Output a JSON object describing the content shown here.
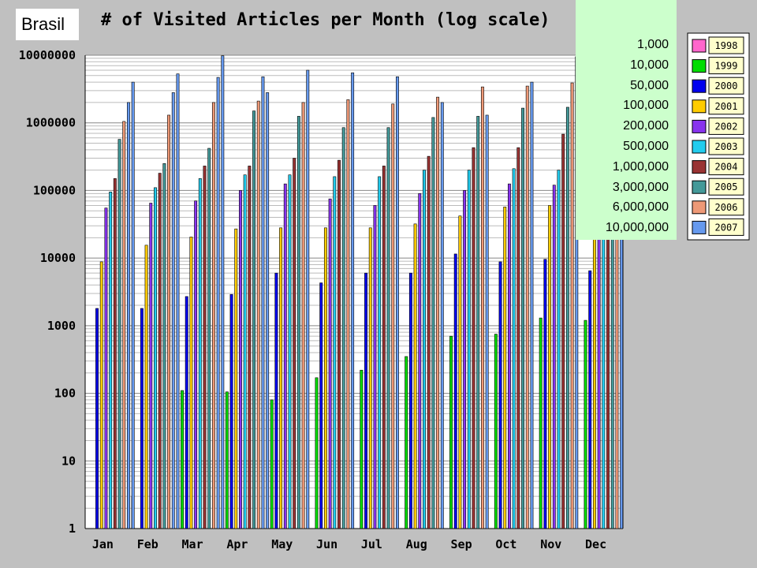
{
  "overlay_label": "Brasil",
  "scale_list": [
    "1,000",
    "10,000",
    "50,000",
    "100,000",
    "200,000",
    "500,000",
    "1,000,000",
    "3,000,000",
    "6,000,000",
    "10,000,000"
  ],
  "chart_data": {
    "type": "bar",
    "title": "# of Visited Articles per Month (log scale)",
    "yscale": "log",
    "ylim": [
      1,
      10000000
    ],
    "yticks": [
      "1",
      "10",
      "100",
      "1000",
      "10000",
      "100000",
      "1000000",
      "10000000"
    ],
    "categories": [
      "Jan",
      "Feb",
      "Mar",
      "Apr",
      "May",
      "Jun",
      "Jul",
      "Aug",
      "Sep",
      "Oct",
      "Nov",
      "Dec"
    ],
    "legend_position": "right",
    "grid": true,
    "series": [
      {
        "name": "1998",
        "color": "#ff66cc",
        "values": [
          null,
          3,
          null,
          null,
          null,
          null,
          null,
          null,
          null,
          null,
          null,
          null
        ]
      },
      {
        "name": "1999",
        "color": "#00dd00",
        "values": [
          null,
          null,
          110,
          105,
          80,
          170,
          220,
          350,
          700,
          750,
          1300,
          1200
        ]
      },
      {
        "name": "2000",
        "color": "#0000ee",
        "values": [
          1800,
          1800,
          2700,
          2900,
          6000,
          4300,
          6000,
          6000,
          11500,
          8800,
          9600,
          6500
        ]
      },
      {
        "name": "2001",
        "color": "#ffcc00",
        "values": [
          8800,
          15500,
          20500,
          27000,
          28000,
          28000,
          28000,
          32000,
          42000,
          57000,
          60000,
          32000
        ]
      },
      {
        "name": "2002",
        "color": "#8833ee",
        "values": [
          55000,
          65000,
          70000,
          100000,
          125000,
          75000,
          60000,
          90000,
          100000,
          125000,
          120000,
          90000
        ]
      },
      {
        "name": "2003",
        "color": "#22ccee",
        "values": [
          95000,
          110000,
          150000,
          170000,
          170000,
          160000,
          160000,
          200000,
          200000,
          210000,
          200000,
          200000
        ]
      },
      {
        "name": "2004",
        "color": "#993333",
        "values": [
          150000,
          180000,
          230000,
          230000,
          300000,
          280000,
          230000,
          320000,
          430000,
          430000,
          680000,
          700000
        ]
      },
      {
        "name": "2005",
        "color": "#449999",
        "values": [
          570000,
          250000,
          420000,
          1500000,
          1250000,
          850000,
          850000,
          1200000,
          1250000,
          1650000,
          1700000,
          1000000
        ]
      },
      {
        "name": "2006",
        "color": "#ee9977",
        "values": [
          1050000,
          1300000,
          2000000,
          2100000,
          2000000,
          2200000,
          1900000,
          2400000,
          3400000,
          3500000,
          3900000,
          2000000
        ]
      },
      {
        "name": "2007",
        "color": "#6699ee",
        "values": [
          2000000,
          2800000,
          4700000,
          4800000,
          6000000,
          5500000,
          4800000,
          2000000,
          1300000,
          4000000,
          9500000,
          3500000
        ]
      }
    ],
    "extra_bars": [
      {
        "month_index": 0,
        "series": "2007",
        "value": 4000000
      },
      {
        "month_index": 1,
        "series": "2007",
        "value": 5300000
      },
      {
        "month_index": 2,
        "series": "2007",
        "value": 9800000
      },
      {
        "month_index": 3,
        "series": "2007",
        "value": 2800000
      }
    ]
  }
}
